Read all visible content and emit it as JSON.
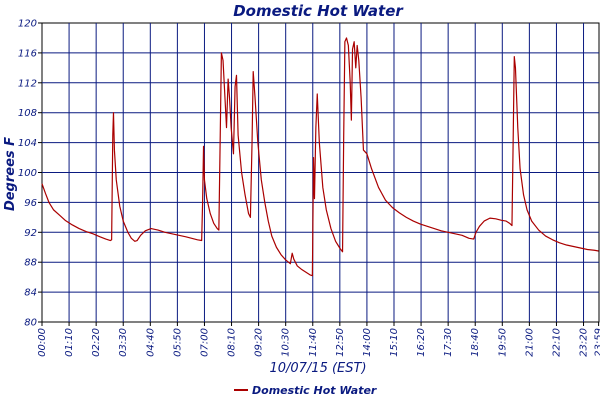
{
  "chart_data": {
    "type": "line",
    "title": "Domestic Hot Water",
    "ylabel": "Degrees F",
    "xlabel": "10/07/15 (EST)",
    "ylim": [
      80,
      120
    ],
    "yticks": [
      80,
      84,
      88,
      92,
      96,
      100,
      104,
      108,
      112,
      116,
      120
    ],
    "x_hours_range": [
      0,
      24
    ],
    "x_tick_labels": [
      "00:00",
      "01:10",
      "02:20",
      "03:30",
      "04:40",
      "05:50",
      "07:00",
      "08:10",
      "09:20",
      "10:30",
      "11:40",
      "12:50",
      "14:00",
      "15:10",
      "16:20",
      "17:30",
      "18:40",
      "19:50",
      "21:00",
      "22:10",
      "23:20",
      "23:59"
    ],
    "x_tick_hours": [
      0,
      1.1667,
      2.3333,
      3.5,
      4.6667,
      5.8333,
      7,
      8.1667,
      9.3333,
      10.5,
      11.6667,
      12.8333,
      14,
      15.1667,
      16.3333,
      17.5,
      18.6667,
      19.8333,
      21,
      22.1667,
      23.3333,
      23.9833
    ],
    "grid": true,
    "legend": {
      "position": "bottom-center"
    },
    "series": [
      {
        "name": "Domestic Hot Water",
        "color": "#aa0000",
        "points": [
          [
            0.0,
            98.5
          ],
          [
            0.15,
            97.2
          ],
          [
            0.3,
            96.0
          ],
          [
            0.5,
            95.0
          ],
          [
            0.75,
            94.3
          ],
          [
            1.0,
            93.6
          ],
          [
            1.3,
            93.0
          ],
          [
            1.6,
            92.5
          ],
          [
            1.9,
            92.1
          ],
          [
            2.2,
            91.8
          ],
          [
            2.5,
            91.4
          ],
          [
            2.75,
            91.1
          ],
          [
            2.95,
            90.9
          ],
          [
            3.0,
            91.0
          ],
          [
            3.05,
            105.0
          ],
          [
            3.08,
            108.0
          ],
          [
            3.12,
            103.0
          ],
          [
            3.2,
            99.0
          ],
          [
            3.35,
            95.5
          ],
          [
            3.5,
            93.5
          ],
          [
            3.7,
            92.0
          ],
          [
            3.85,
            91.2
          ],
          [
            4.0,
            90.8
          ],
          [
            4.1,
            90.9
          ],
          [
            4.25,
            91.6
          ],
          [
            4.45,
            92.2
          ],
          [
            4.7,
            92.5
          ],
          [
            5.0,
            92.3
          ],
          [
            5.3,
            92.0
          ],
          [
            5.6,
            91.8
          ],
          [
            5.9,
            91.6
          ],
          [
            6.2,
            91.4
          ],
          [
            6.45,
            91.2
          ],
          [
            6.7,
            91.0
          ],
          [
            6.88,
            90.9
          ],
          [
            6.92,
            96.0
          ],
          [
            6.96,
            103.5
          ],
          [
            7.0,
            99.0
          ],
          [
            7.1,
            96.5
          ],
          [
            7.25,
            94.5
          ],
          [
            7.4,
            93.2
          ],
          [
            7.55,
            92.5
          ],
          [
            7.62,
            92.3
          ],
          [
            7.68,
            105.0
          ],
          [
            7.73,
            116.0
          ],
          [
            7.8,
            115.0
          ],
          [
            7.9,
            109.0
          ],
          [
            7.95,
            106.0
          ],
          [
            8.02,
            112.5
          ],
          [
            8.08,
            110.0
          ],
          [
            8.15,
            106.0
          ],
          [
            8.25,
            102.5
          ],
          [
            8.32,
            111.5
          ],
          [
            8.38,
            113.0
          ],
          [
            8.45,
            105.0
          ],
          [
            8.6,
            100.0
          ],
          [
            8.75,
            97.0
          ],
          [
            8.9,
            94.5
          ],
          [
            8.98,
            94.0
          ],
          [
            9.05,
            104.0
          ],
          [
            9.1,
            113.5
          ],
          [
            9.18,
            110.0
          ],
          [
            9.3,
            104.0
          ],
          [
            9.45,
            99.0
          ],
          [
            9.6,
            96.0
          ],
          [
            9.75,
            93.5
          ],
          [
            9.9,
            91.5
          ],
          [
            10.1,
            90.0
          ],
          [
            10.3,
            89.0
          ],
          [
            10.5,
            88.3
          ],
          [
            10.7,
            87.8
          ],
          [
            10.78,
            89.2
          ],
          [
            10.85,
            88.4
          ],
          [
            11.0,
            87.5
          ],
          [
            11.2,
            87.0
          ],
          [
            11.4,
            86.6
          ],
          [
            11.55,
            86.3
          ],
          [
            11.65,
            86.2
          ],
          [
            11.7,
            102.0
          ],
          [
            11.74,
            96.5
          ],
          [
            11.8,
            106.0
          ],
          [
            11.86,
            110.5
          ],
          [
            11.95,
            104.0
          ],
          [
            12.1,
            98.0
          ],
          [
            12.25,
            95.0
          ],
          [
            12.45,
            92.5
          ],
          [
            12.65,
            90.8
          ],
          [
            12.85,
            89.8
          ],
          [
            12.95,
            89.4
          ],
          [
            13.0,
            105.0
          ],
          [
            13.05,
            117.5
          ],
          [
            13.12,
            118.0
          ],
          [
            13.2,
            117.0
          ],
          [
            13.28,
            112.0
          ],
          [
            13.33,
            107.0
          ],
          [
            13.38,
            116.5
          ],
          [
            13.45,
            117.5
          ],
          [
            13.52,
            114.0
          ],
          [
            13.58,
            117.0
          ],
          [
            13.65,
            115.0
          ],
          [
            13.75,
            110.0
          ],
          [
            13.85,
            103.0
          ],
          [
            14.0,
            102.5
          ],
          [
            14.2,
            100.5
          ],
          [
            14.5,
            98.0
          ],
          [
            14.8,
            96.3
          ],
          [
            15.1,
            95.3
          ],
          [
            15.4,
            94.6
          ],
          [
            15.7,
            94.0
          ],
          [
            16.0,
            93.5
          ],
          [
            16.3,
            93.1
          ],
          [
            16.6,
            92.8
          ],
          [
            16.9,
            92.5
          ],
          [
            17.2,
            92.2
          ],
          [
            17.5,
            92.0
          ],
          [
            17.8,
            91.8
          ],
          [
            18.1,
            91.6
          ],
          [
            18.4,
            91.2
          ],
          [
            18.6,
            91.1
          ],
          [
            18.7,
            92.0
          ],
          [
            18.85,
            92.8
          ],
          [
            19.05,
            93.5
          ],
          [
            19.3,
            93.9
          ],
          [
            19.55,
            93.8
          ],
          [
            19.8,
            93.6
          ],
          [
            20.0,
            93.5
          ],
          [
            20.15,
            93.2
          ],
          [
            20.25,
            92.9
          ],
          [
            20.3,
            104.0
          ],
          [
            20.35,
            115.5
          ],
          [
            20.4,
            114.0
          ],
          [
            20.5,
            106.0
          ],
          [
            20.6,
            100.5
          ],
          [
            20.75,
            97.0
          ],
          [
            20.9,
            95.0
          ],
          [
            21.1,
            93.5
          ],
          [
            21.4,
            92.3
          ],
          [
            21.7,
            91.5
          ],
          [
            22.0,
            91.0
          ],
          [
            22.3,
            90.6
          ],
          [
            22.6,
            90.3
          ],
          [
            22.9,
            90.1
          ],
          [
            23.2,
            89.9
          ],
          [
            23.5,
            89.7
          ],
          [
            23.8,
            89.6
          ],
          [
            23.98,
            89.5
          ]
        ]
      }
    ]
  }
}
